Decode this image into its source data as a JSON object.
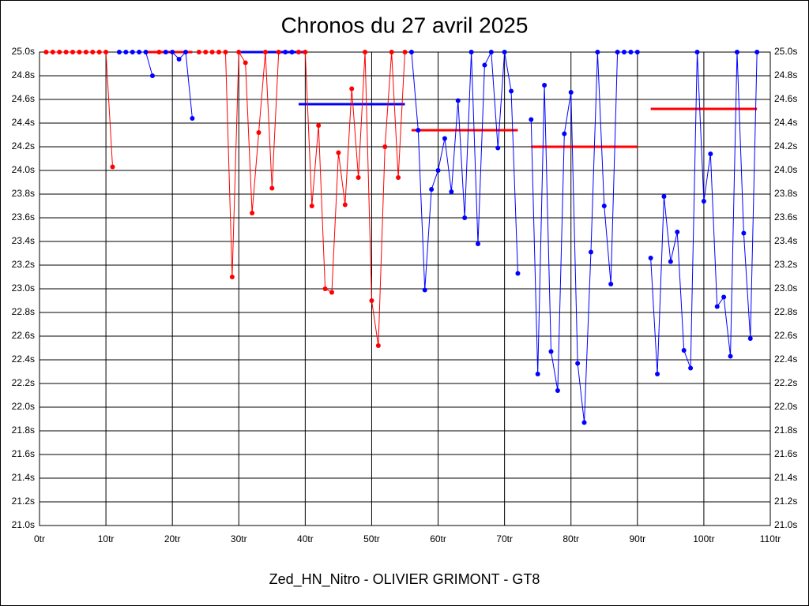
{
  "chart_data": {
    "type": "line",
    "title": "Chronos du 27 avril 2025",
    "xlabel": "Zed_HN_Nitro - OLIVIER GRIMONT - GT8",
    "xlim": [
      0,
      110
    ],
    "ylim": [
      21.0,
      25.0
    ],
    "grid": true,
    "xticks": [
      {
        "value": 0,
        "label": "0tr"
      },
      {
        "value": 10,
        "label": "10tr"
      },
      {
        "value": 20,
        "label": "20tr"
      },
      {
        "value": 30,
        "label": "30tr"
      },
      {
        "value": 40,
        "label": "40tr"
      },
      {
        "value": 50,
        "label": "50tr"
      },
      {
        "value": 60,
        "label": "60tr"
      },
      {
        "value": 70,
        "label": "70tr"
      },
      {
        "value": 80,
        "label": "80tr"
      },
      {
        "value": 90,
        "label": "90tr"
      },
      {
        "value": 100,
        "label": "100tr"
      },
      {
        "value": 110,
        "label": "110tr"
      }
    ],
    "yticks": [
      {
        "value": 21.0,
        "label": "21.0s"
      },
      {
        "value": 21.2,
        "label": "21.2s"
      },
      {
        "value": 21.4,
        "label": "21.4s"
      },
      {
        "value": 21.6,
        "label": "21.6s"
      },
      {
        "value": 21.8,
        "label": "21.8s"
      },
      {
        "value": 22.0,
        "label": "22.0s"
      },
      {
        "value": 22.2,
        "label": "22.2s"
      },
      {
        "value": 22.4,
        "label": "22.4s"
      },
      {
        "value": 22.6,
        "label": "22.6s"
      },
      {
        "value": 22.8,
        "label": "22.8s"
      },
      {
        "value": 23.0,
        "label": "23.0s"
      },
      {
        "value": 23.2,
        "label": "23.2s"
      },
      {
        "value": 23.4,
        "label": "23.4s"
      },
      {
        "value": 23.6,
        "label": "23.6s"
      },
      {
        "value": 23.8,
        "label": "23.8s"
      },
      {
        "value": 24.0,
        "label": "24.0s"
      },
      {
        "value": 24.2,
        "label": "24.2s"
      },
      {
        "value": 24.4,
        "label": "24.4s"
      },
      {
        "value": 24.6,
        "label": "24.6s"
      },
      {
        "value": 24.8,
        "label": "24.8s"
      },
      {
        "value": 25.0,
        "label": "25.0s"
      }
    ],
    "series": [
      {
        "color": "#ff0000",
        "x": [
          1,
          2,
          3,
          4,
          5,
          6,
          7,
          8,
          9,
          10,
          11,
          12,
          18,
          19,
          24,
          25,
          26,
          27,
          28,
          29,
          30,
          31,
          32,
          33,
          34,
          35,
          36,
          37,
          39,
          40,
          41,
          42,
          43,
          44,
          45,
          46,
          47,
          48,
          49,
          50,
          51,
          52,
          53,
          54,
          55
        ],
        "values": [
          25,
          25,
          25,
          25,
          25,
          25,
          25,
          25,
          25,
          25,
          24.03,
          null,
          25,
          null,
          25,
          25,
          25,
          25,
          25,
          23.1,
          25,
          24.91,
          23.64,
          24.32,
          25,
          23.85,
          25,
          null,
          25,
          25,
          23.7,
          24.38,
          23.0,
          22.97,
          24.15,
          23.71,
          24.69,
          23.94,
          25,
          22.9,
          22.52,
          24.2,
          25,
          23.94,
          25
        ]
      },
      {
        "color": "#0000ff",
        "x": [
          12,
          13,
          14,
          15,
          16,
          17,
          18,
          19,
          20,
          21,
          22,
          23,
          24,
          37,
          38,
          39,
          56,
          57,
          58,
          59,
          60,
          61,
          62,
          63,
          64,
          65,
          66,
          67,
          68,
          69,
          70,
          71,
          72,
          73,
          74,
          75,
          76,
          77,
          78,
          79,
          80,
          81,
          82,
          83,
          84,
          85,
          86,
          87,
          88,
          89,
          90,
          91,
          92,
          93,
          94,
          95,
          96,
          97,
          98,
          99,
          100,
          101,
          102,
          103,
          104,
          105,
          106,
          107,
          108
        ],
        "values": [
          25,
          25,
          25,
          25,
          25,
          24.8,
          null,
          25,
          25,
          24.94,
          25,
          24.44,
          null,
          25,
          25,
          null,
          25,
          24.34,
          22.99,
          23.84,
          24.0,
          24.27,
          23.82,
          24.59,
          23.6,
          25,
          23.38,
          24.89,
          25,
          24.19,
          25,
          24.67,
          23.13,
          null,
          24.43,
          22.28,
          24.72,
          22.47,
          22.14,
          24.31,
          24.66,
          22.37,
          21.87,
          23.31,
          25,
          23.7,
          23.04,
          25,
          25,
          25,
          25,
          null,
          23.26,
          22.28,
          23.78,
          23.23,
          23.48,
          22.48,
          22.33,
          25,
          23.74,
          24.14,
          22.85,
          22.93,
          22.43,
          25,
          23.47,
          22.58,
          25
        ]
      }
    ],
    "averages": [
      {
        "color": "#ff0000",
        "value": 25.0,
        "x": [
          16,
          23
        ]
      },
      {
        "color": "#0000ff",
        "value": 25.0,
        "x": [
          30,
          40
        ]
      },
      {
        "color": "#0000ff",
        "value": 24.56,
        "x": [
          39,
          55
        ]
      },
      {
        "color": "#ff0000",
        "value": 24.34,
        "x": [
          56,
          72
        ]
      },
      {
        "color": "#ff0000",
        "value": 24.2,
        "x": [
          74,
          90
        ]
      },
      {
        "color": "#ff0000",
        "value": 24.52,
        "x": [
          92,
          108
        ]
      }
    ]
  }
}
